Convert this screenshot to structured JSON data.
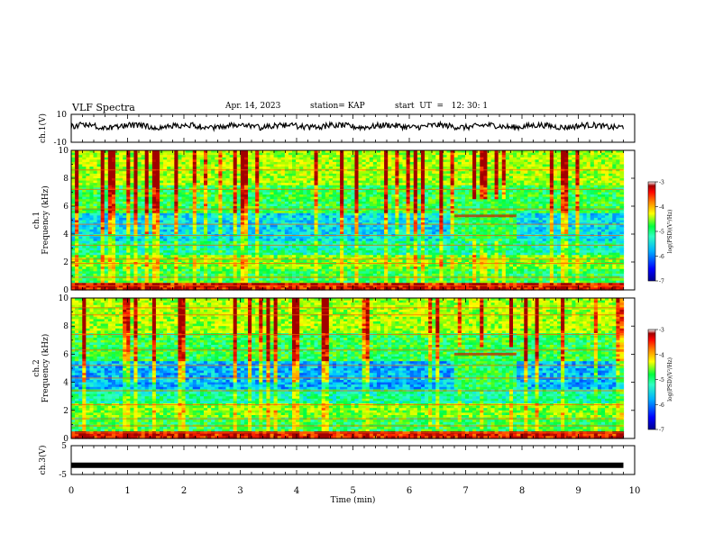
{
  "header": {
    "title": "VLF Spectra",
    "date": "Apr. 14, 2023",
    "station": "station= KAP",
    "start": "start  UT  =   12: 30: 1"
  },
  "colors": {
    "colormap": [
      "#00008f",
      "#0000ff",
      "#0070ff",
      "#00d0ff",
      "#30ffc0",
      "#00ff40",
      "#a0ff00",
      "#ffff00",
      "#ffa000",
      "#ff2000",
      "#a00000",
      "#ffffff"
    ]
  },
  "chart_data": [
    {
      "type": "line",
      "panel": "ch1-waveform",
      "ylabel": "ch.1(V)",
      "ylim": [
        -10,
        10
      ],
      "yticks": [
        "10",
        "-10"
      ],
      "xlim": [
        0,
        10
      ],
      "description_values": {
        "baseline_V": 1.5,
        "noise_amplitude_V": 3.5
      }
    },
    {
      "type": "heatmap",
      "panel": "ch1-spectrogram",
      "ylabel": "ch.1\nFrequency  (kHz)",
      "ylabel_lines": [
        "ch.1",
        "Frequency  (kHz)"
      ],
      "ylim": [
        0,
        10
      ],
      "yticks": [
        "0",
        "2",
        "4",
        "6",
        "8",
        "10"
      ],
      "xlim": [
        0,
        10
      ],
      "data_end_min": 9.8,
      "colorbar": {
        "label": "log(PSD)(V²/Hz)",
        "range": [
          -7,
          -3
        ],
        "ticks": [
          "-3",
          "-4",
          "-5",
          "-6",
          "-7"
        ]
      }
    },
    {
      "type": "heatmap",
      "panel": "ch2-spectrogram",
      "ylabel_lines": [
        "ch.2",
        "Frequency  (kHz)"
      ],
      "ylim": [
        0,
        10
      ],
      "yticks": [
        "0",
        "2",
        "4",
        "6",
        "8",
        "10"
      ],
      "xlim": [
        0,
        10
      ],
      "data_end_min": 9.8,
      "colorbar": {
        "label": "log(PSD)(V²/Hz)",
        "range": [
          -7,
          -3
        ],
        "ticks": [
          "-3",
          "-4",
          "-5",
          "-6",
          "-7"
        ]
      }
    },
    {
      "type": "line",
      "panel": "ch3-waveform",
      "ylabel": "ch.3(V)",
      "ylim": [
        -5,
        5
      ],
      "yticks": [
        "5",
        "-5"
      ],
      "xlim": [
        0,
        10
      ],
      "constant_value_V": -1.8,
      "data_end_min": 9.8
    }
  ],
  "xaxis": {
    "label": "Time  (min)",
    "ticks": [
      "0",
      "1",
      "2",
      "3",
      "4",
      "5",
      "6",
      "7",
      "8",
      "9",
      "10"
    ]
  }
}
